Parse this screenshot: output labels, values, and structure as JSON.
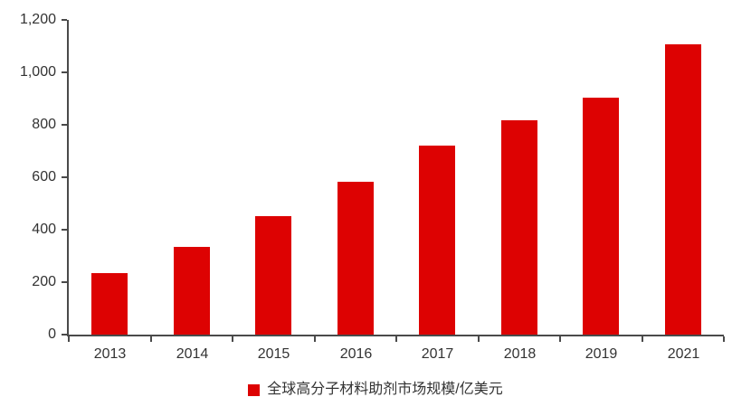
{
  "chart_data": {
    "type": "bar",
    "title": "",
    "xlabel": "",
    "ylabel": "",
    "categories": [
      "2013",
      "2014",
      "2015",
      "2016",
      "2017",
      "2018",
      "2019",
      "2021"
    ],
    "values": [
      233,
      333,
      452,
      582,
      722,
      817,
      905,
      1107
    ],
    "series_name": "全球高分子材料助剂市场规模/亿美元",
    "legend": {
      "label": "全球高分子材料助剂市场规模/亿美元",
      "position": "bottom-center"
    },
    "ylim": [
      0,
      1200
    ],
    "ytick_step": 200,
    "yticklabels": [
      "0",
      "200",
      "400",
      "600",
      "800",
      "1,000",
      "1,200"
    ],
    "grid": false,
    "colors": {
      "bar": "#dd0202",
      "axis": "#4a4a4a",
      "text": "#333333",
      "background": "#ffffff"
    }
  }
}
